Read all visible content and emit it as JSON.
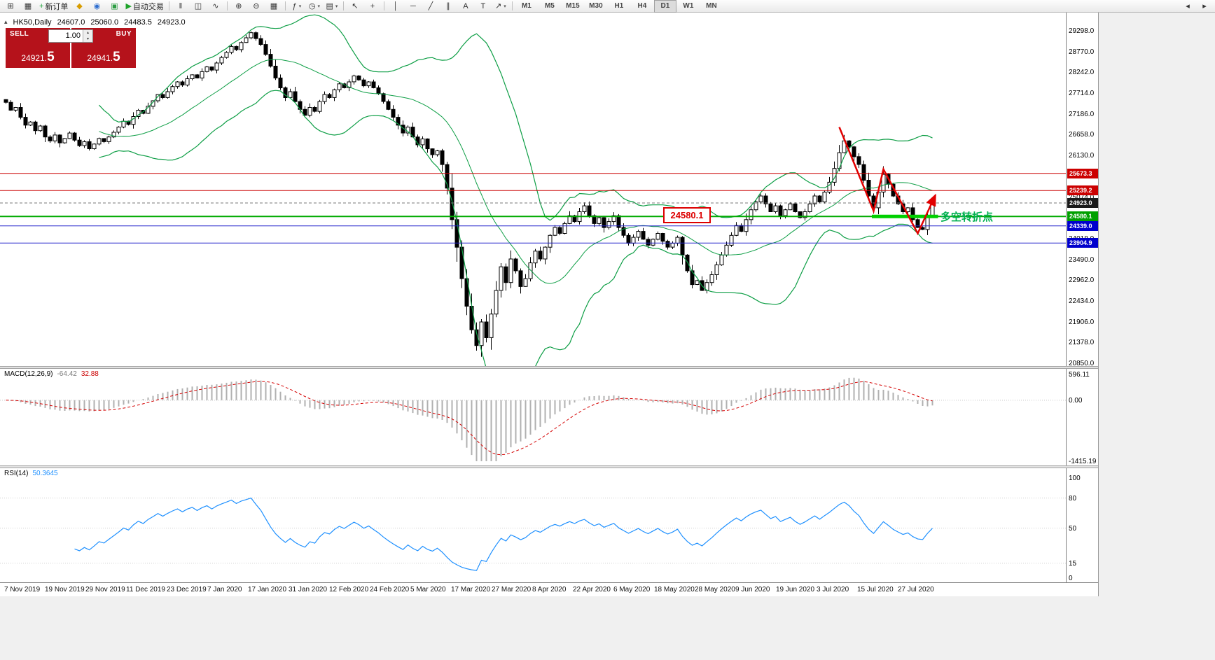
{
  "toolbar": {
    "items": [
      {
        "name": "new-chart-button",
        "glyph": "⊞"
      },
      {
        "name": "profiles-button",
        "glyph": "▦"
      },
      {
        "name": "new-order-button",
        "glyph": "+",
        "glyph_color": "#18a034",
        "label": "新订单"
      },
      {
        "name": "history-center-button",
        "glyph": "◆",
        "glyph_color": "#d89c00"
      },
      {
        "name": "market-watch-button",
        "glyph": "◉",
        "glyph_color": "#2f6fd0"
      },
      {
        "name": "terminal-button",
        "glyph": "▣",
        "glyph_color": "#2e9e44"
      },
      {
        "name": "autotrading-button",
        "glyph": "▶",
        "glyph_color": "#1fa32a",
        "label": "自动交易"
      },
      {
        "sep": true
      },
      {
        "name": "bars-mode-button",
        "glyph": "‖"
      },
      {
        "name": "candles-mode-button",
        "glyph": "◫"
      },
      {
        "name": "line-mode-button",
        "glyph": "∿"
      },
      {
        "sep": true
      },
      {
        "name": "zoom-in-button",
        "glyph": "⊕"
      },
      {
        "name": "zoom-out-button",
        "glyph": "⊖"
      },
      {
        "name": "tile-windows-button",
        "glyph": "▦"
      },
      {
        "sep": true
      },
      {
        "name": "indicators-dropdown",
        "glyph": "ƒ",
        "dropdown": true
      },
      {
        "name": "periods-dropdown",
        "glyph": "◷",
        "dropdown": true
      },
      {
        "name": "templates-dropdown",
        "glyph": "▤",
        "dropdown": true
      },
      {
        "sep": true
      },
      {
        "name": "cursor-button",
        "glyph": "↖"
      },
      {
        "name": "crosshair-button",
        "glyph": "+"
      },
      {
        "sep": true
      },
      {
        "name": "vertical-line-button",
        "glyph": "│"
      },
      {
        "name": "horizontal-line-button",
        "glyph": "─"
      },
      {
        "name": "trendline-button",
        "glyph": "╱"
      },
      {
        "name": "channel-button",
        "glyph": "∥"
      },
      {
        "name": "text-button",
        "glyph": "A"
      },
      {
        "name": "label-button",
        "glyph": "T"
      },
      {
        "name": "arrows-dropdown",
        "glyph": "↗",
        "dropdown": true
      },
      {
        "sep": true
      }
    ],
    "timeframes": {
      "options": [
        "M1",
        "M5",
        "M15",
        "M30",
        "H1",
        "H4",
        "D1",
        "W1",
        "MN"
      ],
      "active": "D1"
    },
    "right_items": [
      {
        "name": "toolbar-prev-button",
        "glyph": "◂"
      },
      {
        "name": "toolbar-next-button",
        "glyph": "▸"
      }
    ]
  },
  "chart": {
    "symbol_period": "HK50,Daily",
    "open": "24607.0",
    "high": "25060.0",
    "low": "24483.5",
    "close": "24923.0",
    "one_click": {
      "sell_label": "SELL",
      "buy_label": "BUY",
      "volume": "1.00",
      "sell_price": {
        "main": "24921.",
        "pip": "5"
      },
      "buy_price": {
        "main": "24941.",
        "pip": "5"
      },
      "button_color": "#b5121b"
    }
  },
  "indicators": {
    "macd": {
      "name": "MACD(12,26,9)",
      "value": "-64.42",
      "signal_value": "32.88",
      "scale": [
        {
          "text": "596.11",
          "v": 596.11
        },
        {
          "text": "0.00",
          "v": 0
        },
        {
          "text": "-1415.19",
          "v": -1415.19
        }
      ]
    },
    "rsi": {
      "name": "RSI(14)",
      "value": "50.3645",
      "scale": [
        {
          "text": "100",
          "v": 100
        },
        {
          "text": "80",
          "v": 80
        },
        {
          "text": "50",
          "v": 50
        },
        {
          "text": "15",
          "v": 15
        },
        {
          "text": "0",
          "v": 0
        }
      ],
      "levels": [
        80,
        50,
        15
      ]
    }
  },
  "chart_data": {
    "type": "candlestick",
    "symbol": "HK50",
    "timeframe": "Daily",
    "y_axis": {
      "max": 29298.0,
      "min": 20850.0,
      "step": 528.0,
      "labels": [
        "29298.0",
        "28770.0",
        "28242.0",
        "27714.0",
        "27186.0",
        "26658.0",
        "26130.0",
        "25602.0",
        "25074.0",
        "24546.0",
        "24018.0",
        "23490.0",
        "22962.0",
        "22434.0",
        "21906.0",
        "21378.0",
        "20850.0"
      ]
    },
    "x_dates": [
      "7 Nov 2019",
      "19 Nov 2019",
      "29 Nov 2019",
      "11 Dec 2019",
      "23 Dec 2019",
      "7 Jan 2020",
      "17 Jan 2020",
      "31 Jan 2020",
      "12 Feb 2020",
      "24 Feb 2020",
      "5 Mar 2020",
      "17 Mar 2020",
      "27 Mar 2020",
      "8 Apr 2020",
      "22 Apr 2020",
      "6 May 2020",
      "18 May 2020",
      "28 May 2020",
      "9 Jun 2020",
      "19 Jun 2020",
      "3 Jul 2020",
      "15 Jul 2020",
      "27 Jul 2020"
    ],
    "closes": [
      27480,
      27280,
      27350,
      27100,
      26900,
      26980,
      26760,
      26880,
      26600,
      26500,
      26650,
      26450,
      26560,
      26700,
      26520,
      26380,
      26480,
      26300,
      26420,
      26560,
      26480,
      26600,
      26720,
      26850,
      27000,
      26920,
      27120,
      27280,
      27200,
      27380,
      27520,
      27680,
      27600,
      27750,
      27880,
      28000,
      27920,
      28080,
      28180,
      28100,
      28260,
      28380,
      28300,
      28480,
      28620,
      28750,
      28900,
      28820,
      29000,
      29120,
      29250,
      29100,
      28950,
      28700,
      28400,
      28100,
      27850,
      27600,
      27750,
      27500,
      27300,
      27150,
      27350,
      27250,
      27500,
      27680,
      27600,
      27800,
      27950,
      27850,
      28000,
      28150,
      28050,
      27900,
      28000,
      27850,
      27700,
      27500,
      27300,
      27100,
      26900,
      26700,
      26850,
      26600,
      26400,
      26550,
      26300,
      26150,
      26250,
      25900,
      25300,
      24500,
      23800,
      23000,
      22300,
      21700,
      21300,
      21900,
      21500,
      22100,
      22700,
      23300,
      22900,
      23500,
      23200,
      22800,
      23000,
      23400,
      23700,
      23500,
      23800,
      24100,
      24300,
      24150,
      24400,
      24600,
      24450,
      24700,
      24850,
      24600,
      24400,
      24550,
      24300,
      24450,
      24600,
      24300,
      24100,
      23900,
      24050,
      24200,
      24000,
      23850,
      24000,
      24150,
      23950,
      23800,
      23900,
      24050,
      23600,
      23200,
      22850,
      22950,
      22700,
      22900,
      23100,
      23350,
      23600,
      23850,
      24100,
      24350,
      24200,
      24500,
      24750,
      24950,
      25100,
      24900,
      24700,
      24850,
      24600,
      24750,
      24900,
      24700,
      24550,
      24700,
      24900,
      25100,
      24950,
      25200,
      25450,
      25800,
      26200,
      26500,
      26350,
      26100,
      25900,
      25500,
      25100,
      24800,
      25200,
      25650,
      25400,
      25100,
      24900,
      24700,
      24800,
      24500,
      24300,
      24250,
      24600,
      24923
    ],
    "bollinger": {
      "period": 20,
      "deviation": 2,
      "color": "#0d9e45"
    },
    "macd_params": {
      "fast": 12,
      "slow": 26,
      "signal": 9
    },
    "rsi_period": 14,
    "levels": [
      {
        "name": "resistance-line-1",
        "price": 25673.3,
        "label": "25673.3",
        "line": "#cc0000",
        "tag": "#cc0000",
        "width": 1
      },
      {
        "name": "resistance-line-2",
        "price": 25239.2,
        "label": "25239.2",
        "line": "#cc0000",
        "tag": "#cc0000",
        "width": 1
      },
      {
        "name": "current-price-line",
        "price": 24923.0,
        "label": "24923.0",
        "line": "#777777",
        "tag": "#1a1a1a",
        "width": 1,
        "dash": true
      },
      {
        "name": "pivot-line",
        "price": 24580.1,
        "label": "24580.1",
        "line": "#00aa00",
        "tag": "#00a000",
        "width": 2
      },
      {
        "name": "support-line-1",
        "price": 24339.0,
        "label": "24339.0",
        "line": "#2222cc",
        "tag": "#0000cd",
        "width": 1
      },
      {
        "name": "support-line-2",
        "price": 23904.9,
        "label": "23904.9",
        "line": "#2222cc",
        "tag": "#0000cd",
        "width": 1
      }
    ],
    "annotations": {
      "price_callout": {
        "text": "24580.1",
        "color": "#dd0000"
      },
      "turning_point": {
        "text": "多空转折点",
        "color": "#00b050"
      },
      "trend_arrow": {
        "color": "#e10000",
        "points": [
          [
            170,
            26850
          ],
          [
            177,
            24720
          ],
          [
            179,
            25780
          ],
          [
            186,
            24150
          ],
          [
            189.6,
            25120
          ]
        ]
      },
      "highlight": {
        "price": 24580.1,
        "from_day": 177,
        "to_day": 190.5,
        "color": "#00d000"
      }
    }
  }
}
